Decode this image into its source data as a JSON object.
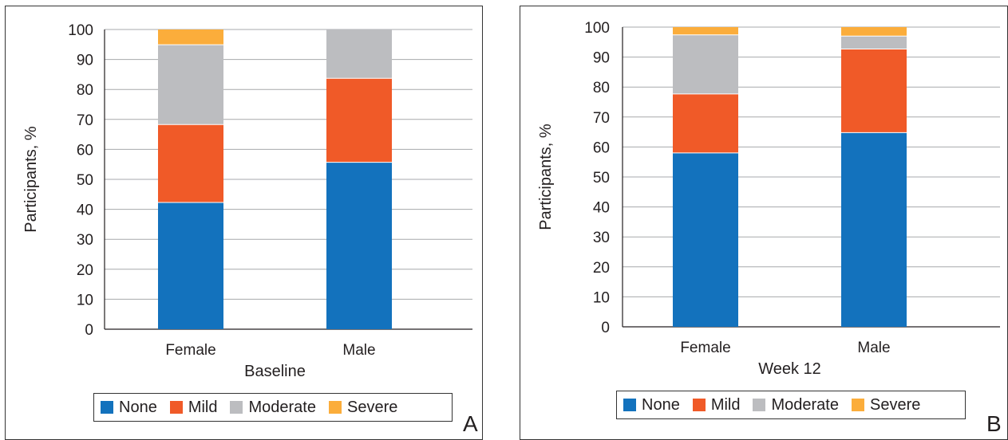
{
  "chart_data": [
    {
      "type": "bar",
      "stacked": true,
      "panel_label": "A",
      "title": "",
      "xlabel": "Baseline",
      "ylabel": "Participants, %",
      "ylim": [
        0,
        100
      ],
      "yticks": [
        0,
        10,
        20,
        30,
        40,
        50,
        60,
        70,
        80,
        90,
        100
      ],
      "grid": true,
      "categories": [
        "Female",
        "Male"
      ],
      "series": [
        {
          "name": "None",
          "color": "#1372bd",
          "values": [
            42.3,
            55.7
          ]
        },
        {
          "name": "Mild",
          "color": "#f05a28",
          "values": [
            26.0,
            28.0
          ]
        },
        {
          "name": "Moderate",
          "color": "#bcbdc0",
          "values": [
            26.6,
            16.3
          ]
        },
        {
          "name": "Severe",
          "color": "#fbad3b",
          "values": [
            5.1,
            0
          ]
        }
      ],
      "legend_position": "bottom"
    },
    {
      "type": "bar",
      "stacked": true,
      "panel_label": "B",
      "title": "",
      "xlabel": "Week 12",
      "ylabel": "Participants, %",
      "ylim": [
        0,
        100
      ],
      "yticks": [
        0,
        10,
        20,
        30,
        40,
        50,
        60,
        70,
        80,
        90,
        100
      ],
      "grid": true,
      "categories": [
        "Female",
        "Male"
      ],
      "series": [
        {
          "name": "None",
          "color": "#1372bd",
          "values": [
            58.0,
            64.8
          ]
        },
        {
          "name": "Mild",
          "color": "#f05a28",
          "values": [
            19.7,
            27.9
          ]
        },
        {
          "name": "Moderate",
          "color": "#bcbdc0",
          "values": [
            19.7,
            4.3
          ]
        },
        {
          "name": "Severe",
          "color": "#fbad3b",
          "values": [
            2.6,
            3.0
          ]
        }
      ],
      "legend_position": "bottom"
    }
  ]
}
